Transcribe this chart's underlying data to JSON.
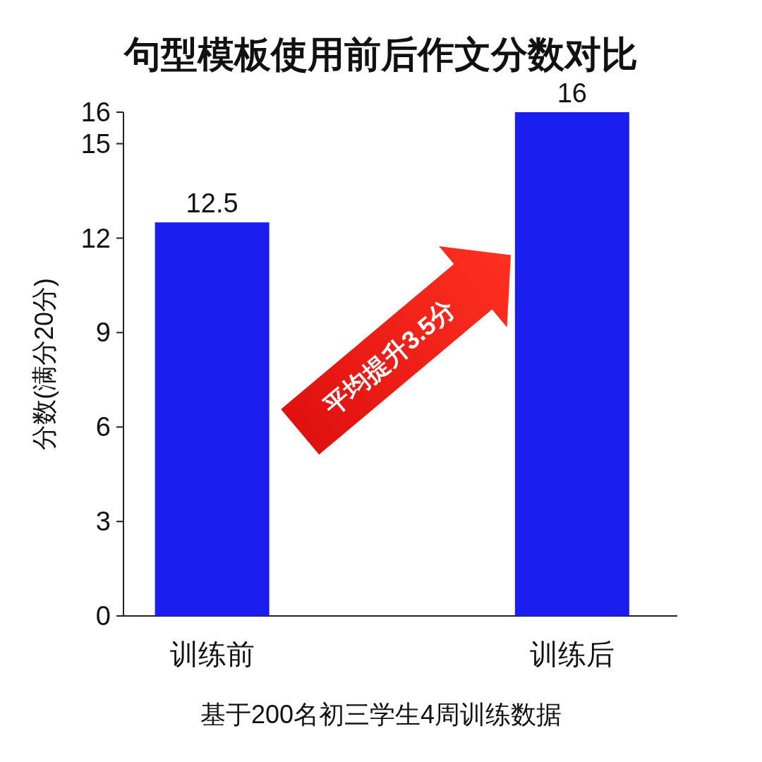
{
  "chart_data": {
    "type": "bar",
    "title": "句型模板使用前后作文分数对比",
    "ylabel": "分数(满分20分)",
    "categories": [
      "训练前",
      "训练后"
    ],
    "values": [
      12.5,
      16
    ],
    "color": "#1a1ff0",
    "ylim": [
      0,
      16
    ],
    "yticks": [
      0,
      3,
      6,
      9,
      12,
      15,
      16
    ],
    "data_labels": true,
    "grid": false,
    "annotations": [
      "平均提升3.5分",
      "基于200名初三学生4周训练数据"
    ]
  }
}
